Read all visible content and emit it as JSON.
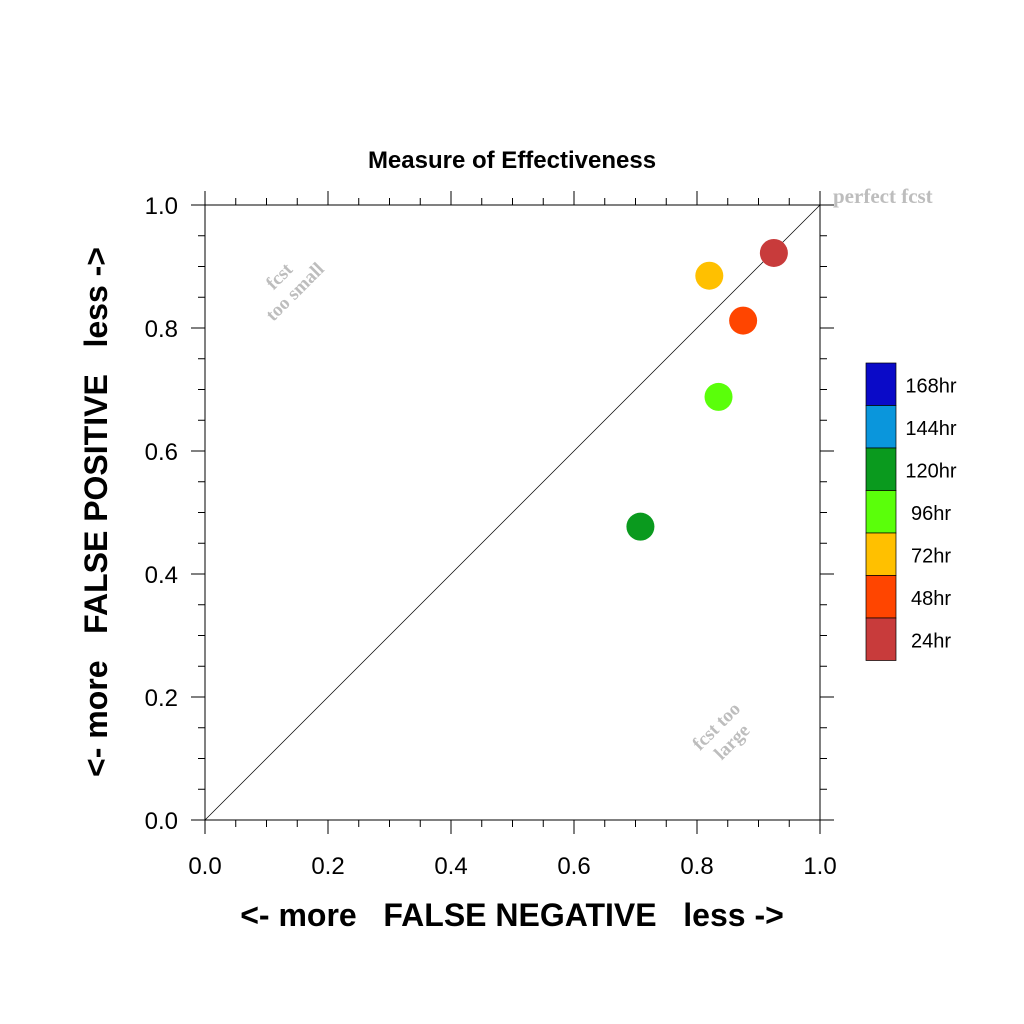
{
  "chart_data": {
    "type": "scatter",
    "title": "Measure of Effectiveness",
    "xlabel": "<- more   FALSE NEGATIVE   less ->",
    "ylabel": "<- more   FALSE POSITIVE   less ->",
    "xlim": [
      0,
      1
    ],
    "ylim": [
      0,
      1
    ],
    "x_ticks": [
      "0.0",
      "0.2",
      "0.4",
      "0.6",
      "0.8",
      "1.0"
    ],
    "y_ticks": [
      "0.0",
      "0.2",
      "0.4",
      "0.6",
      "0.8",
      "1.0"
    ],
    "grid": false,
    "reference_line": {
      "from": [
        0,
        0
      ],
      "to": [
        1,
        1
      ]
    },
    "annotations": {
      "perfect": "perfect fcst",
      "too_small_1": "fcst",
      "too_small_2": "too small",
      "too_large_1": "fcst too",
      "too_large_2": "large"
    },
    "points": [
      {
        "label": "24hr",
        "x": 0.925,
        "y": 0.922,
        "color": "#c83b3b"
      },
      {
        "label": "48hr",
        "x": 0.875,
        "y": 0.812,
        "color": "#ff4500"
      },
      {
        "label": "72hr",
        "x": 0.82,
        "y": 0.885,
        "color": "#ffc000"
      },
      {
        "label": "96hr",
        "x": 0.835,
        "y": 0.688,
        "color": "#5aff0a"
      },
      {
        "label": "120hr",
        "x": 0.708,
        "y": 0.477,
        "color": "#0a9a1e"
      }
    ],
    "legend": [
      {
        "label": "168hr",
        "color": "#0a0ac8"
      },
      {
        "label": "144hr",
        "color": "#0a96dc"
      },
      {
        "label": "120hr",
        "color": "#0a9a1e"
      },
      {
        "label": "96hr",
        "color": "#5aff0a"
      },
      {
        "label": "72hr",
        "color": "#ffc000"
      },
      {
        "label": "48hr",
        "color": "#ff4500"
      },
      {
        "label": "24hr",
        "color": "#c83b3b"
      }
    ],
    "legend_position": "right"
  }
}
